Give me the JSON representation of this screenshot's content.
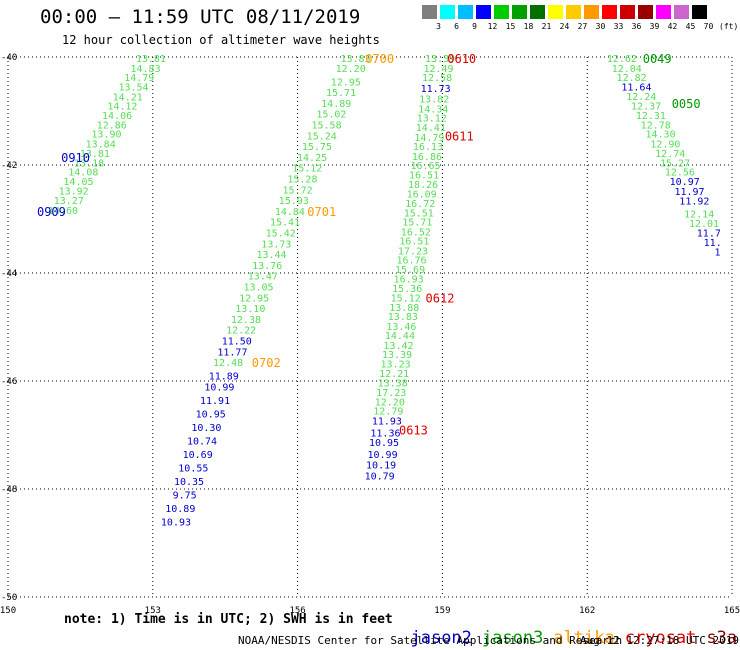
{
  "header": {
    "title": "00:00 – 11:59 UTC 08/11/2019",
    "subtitle": "12 hour collection of altimeter wave heights"
  },
  "colorbar": {
    "labels": [
      "3",
      "6",
      "9",
      "12",
      "15",
      "18",
      "21",
      "24",
      "27",
      "30",
      "33",
      "36",
      "39",
      "42",
      "45",
      "70",
      "(ft)"
    ],
    "colors": [
      "#7f7f7f",
      "#00ffff",
      "#00bfff",
      "#0000ff",
      "#00cc00",
      "#00a000",
      "#007000",
      "#ffff00",
      "#ffcc00",
      "#ff9900",
      "#ff0000",
      "#cc0000",
      "#990000",
      "#ff00ff",
      "#cc66cc",
      "#000000"
    ]
  },
  "footer": {
    "note": "note: 1) Time is in UTC; 2) SWH is in feet",
    "center": "NOAA/NESDIS Center for Satellite Applications and Research",
    "date": "Aug 12 12:27:18 UTC 2019"
  },
  "legend": [
    {
      "name": "jason2",
      "color": "#0000cc"
    },
    {
      "name": "jason3",
      "color": "#009900"
    },
    {
      "name": "altika",
      "color": "#ff9900"
    },
    {
      "name": "cryosat",
      "color": "#dd0000"
    },
    {
      "name": "s3a",
      "color": "#880000"
    }
  ],
  "chart_data": {
    "type": "scatter",
    "title": "00:00 – 11:59 UTC 08/11/2019",
    "xlabel": "",
    "ylabel": "",
    "xlim": [
      150,
      165
    ],
    "ylim": [
      -50,
      -40
    ],
    "x_ticks": [
      150,
      153,
      156,
      159,
      162,
      165
    ],
    "y_ticks": [
      -40,
      -42,
      -44,
      -46,
      -48,
      -50
    ],
    "grid": true,
    "units": "ft",
    "series": [
      {
        "name": "jason3",
        "color": "#55dd55",
        "points": [
          [
            152.96,
            -40.02,
            "13.81"
          ],
          [
            152.85,
            -40.2,
            "14.83"
          ],
          [
            152.72,
            -40.37,
            "14.79"
          ],
          [
            152.6,
            -40.55,
            "13.54"
          ],
          [
            152.48,
            -40.73,
            "14.21"
          ],
          [
            152.37,
            -40.9,
            "14.12"
          ],
          [
            152.26,
            -41.07,
            "14.06"
          ],
          [
            152.15,
            -41.25,
            "12.86"
          ],
          [
            152.04,
            -41.42,
            "13.90"
          ],
          [
            151.92,
            -41.6,
            "13.84"
          ],
          [
            151.8,
            -41.78,
            "13.81"
          ],
          [
            151.68,
            -41.95,
            "13.18"
          ],
          [
            151.56,
            -42.12,
            "14.08"
          ],
          [
            151.46,
            -42.3,
            "14.05"
          ],
          [
            151.36,
            -42.47,
            "13.92"
          ],
          [
            151.26,
            -42.65,
            "13.27"
          ],
          [
            151.14,
            -42.83,
            "14.60"
          ]
        ]
      },
      {
        "name": "jason2",
        "color": "#0000cc",
        "points": []
      },
      {
        "name": "altika",
        "color": "#55dd55",
        "points": [
          [
            157.2,
            -40.02,
            "13.83"
          ],
          [
            157.1,
            -40.2,
            "12.20"
          ],
          [
            157.0,
            -40.45,
            "12.95"
          ],
          [
            156.9,
            -40.65,
            "15.71"
          ],
          [
            156.8,
            -40.85,
            "14.89"
          ],
          [
            156.7,
            -41.05,
            "15.02"
          ],
          [
            156.6,
            -41.25,
            "15.58"
          ],
          [
            156.5,
            -41.45,
            "15.24"
          ],
          [
            156.4,
            -41.65,
            "15.75"
          ],
          [
            156.3,
            -41.85,
            "14.25"
          ],
          [
            156.2,
            -42.05,
            "15.12"
          ],
          [
            156.1,
            -42.25,
            "15.28"
          ],
          [
            156.0,
            -42.45,
            "15.72"
          ],
          [
            155.92,
            -42.65,
            "15.93"
          ],
          [
            155.84,
            -42.85,
            "14.84"
          ],
          [
            155.74,
            -43.05,
            "15.41"
          ],
          [
            155.65,
            -43.25,
            "15.42"
          ],
          [
            155.56,
            -43.45,
            "13.73"
          ],
          [
            155.46,
            -43.65,
            "13.44"
          ],
          [
            155.37,
            -43.85,
            "13.76"
          ],
          [
            155.28,
            -44.05,
            "13.47"
          ],
          [
            155.19,
            -44.25,
            "13.05"
          ],
          [
            155.1,
            -44.45,
            "12.95"
          ],
          [
            155.02,
            -44.65,
            "13.10"
          ],
          [
            154.93,
            -44.85,
            "12.38"
          ],
          [
            154.83,
            -45.05,
            "12.22"
          ]
        ]
      },
      {
        "name": "altika-blue",
        "color": "#0000cc",
        "points": [
          [
            154.74,
            -45.25,
            "11.50"
          ],
          [
            154.65,
            -45.45,
            "11.77"
          ]
        ]
      },
      {
        "name": "altika-tail",
        "color": "#55dd55",
        "points": [
          [
            154.56,
            -45.65,
            "12.48"
          ]
        ]
      },
      {
        "name": "altika-end",
        "color": "#0000cc",
        "points": [
          [
            154.47,
            -45.9,
            "11.89"
          ],
          [
            154.38,
            -46.1,
            "10.99"
          ],
          [
            154.29,
            -46.35,
            "11.91"
          ],
          [
            154.2,
            -46.6,
            "10.95"
          ],
          [
            154.11,
            -46.85,
            "10.30"
          ],
          [
            154.02,
            -47.1,
            "10.74"
          ],
          [
            153.93,
            -47.35,
            "10.69"
          ],
          [
            153.84,
            -47.6,
            "10.55"
          ],
          [
            153.75,
            -47.85,
            "10.35"
          ],
          [
            153.66,
            -48.1,
            "9.75"
          ],
          [
            153.57,
            -48.35,
            "10.89"
          ],
          [
            153.48,
            -48.6,
            "10.93"
          ]
        ]
      },
      {
        "name": "cryosat",
        "color": "#55dd55",
        "points": [
          [
            158.95,
            -40.02,
            "13.39"
          ],
          [
            158.92,
            -40.2,
            "12.49"
          ],
          [
            158.89,
            -40.37,
            "12.58"
          ],
          [
            158.83,
            -40.77,
            "13.82"
          ],
          [
            158.81,
            -40.95,
            "14.34"
          ],
          [
            158.78,
            -41.12,
            "13.12"
          ],
          [
            158.76,
            -41.3,
            "14.41"
          ],
          [
            158.73,
            -41.48,
            "14.79"
          ],
          [
            158.7,
            -41.65,
            "16.13"
          ],
          [
            158.68,
            -41.83,
            "16.86"
          ],
          [
            158.65,
            -42.0,
            "16.65"
          ],
          [
            158.62,
            -42.18,
            "16.51"
          ],
          [
            158.6,
            -42.35,
            "18.26"
          ],
          [
            158.57,
            -42.53,
            "16.09"
          ],
          [
            158.54,
            -42.7,
            "16.72"
          ],
          [
            158.51,
            -42.88,
            "15.51"
          ],
          [
            158.48,
            -43.05,
            "15.71"
          ],
          [
            158.45,
            -43.23,
            "16.52"
          ],
          [
            158.42,
            -43.4,
            "16.51"
          ],
          [
            158.39,
            -43.58,
            "17.23"
          ],
          [
            158.36,
            -43.75,
            "16.76"
          ],
          [
            158.33,
            -43.93,
            "15.69"
          ],
          [
            158.3,
            -44.1,
            "16.93"
          ],
          [
            158.27,
            -44.28,
            "15.36"
          ],
          [
            158.24,
            -44.45,
            "15.12"
          ],
          [
            158.21,
            -44.63,
            "13.88"
          ],
          [
            158.18,
            -44.8,
            "13.83"
          ],
          [
            158.15,
            -44.98,
            "13.46"
          ],
          [
            158.12,
            -45.15,
            "14.44"
          ],
          [
            158.09,
            -45.33,
            "13.42"
          ],
          [
            158.06,
            -45.5,
            "13.39"
          ],
          [
            158.03,
            -45.68,
            "13.23"
          ],
          [
            158.0,
            -45.85,
            "12.21"
          ],
          [
            157.97,
            -46.03,
            "13.38"
          ],
          [
            157.94,
            -46.2,
            "17.23"
          ],
          [
            157.91,
            -46.38,
            "12.20"
          ],
          [
            157.88,
            -46.55,
            "12.79"
          ]
        ]
      },
      {
        "name": "cryosat-blue",
        "color": "#0000cc",
        "points": [
          [
            158.86,
            -40.57,
            "11.73"
          ],
          [
            157.85,
            -46.73,
            "11.93"
          ],
          [
            157.82,
            -46.95,
            "11.36"
          ],
          [
            157.79,
            -47.13,
            "10.95"
          ],
          [
            157.76,
            -47.35,
            "10.99"
          ],
          [
            157.73,
            -47.55,
            "10.19"
          ],
          [
            157.7,
            -47.75,
            "10.79"
          ]
        ]
      },
      {
        "name": "s3a",
        "color": "#55dd55",
        "points": [
          [
            162.72,
            -40.02,
            "12.62"
          ],
          [
            162.82,
            -40.2,
            "12.04"
          ],
          [
            162.92,
            -40.37,
            "12.82"
          ],
          [
            163.12,
            -40.72,
            "12.24"
          ],
          [
            163.22,
            -40.9,
            "12.37"
          ],
          [
            163.32,
            -41.07,
            "12.31"
          ],
          [
            163.42,
            -41.25,
            "12.78"
          ],
          [
            163.52,
            -41.42,
            "14.30"
          ],
          [
            163.62,
            -41.6,
            "12.90"
          ],
          [
            163.72,
            -41.78,
            "12.74"
          ],
          [
            163.82,
            -41.95,
            "15.27"
          ],
          [
            163.92,
            -42.12,
            "12.56"
          ],
          [
            164.32,
            -42.9,
            "12.14"
          ],
          [
            164.42,
            -43.07,
            "12.01"
          ]
        ]
      },
      {
        "name": "s3a-blue",
        "color": "#0000cc",
        "points": [
          [
            163.02,
            -40.55,
            "11.64"
          ],
          [
            164.02,
            -42.3,
            "10.97"
          ],
          [
            164.12,
            -42.48,
            "11.97"
          ],
          [
            164.22,
            -42.66,
            "11.92"
          ],
          [
            164.52,
            -43.25,
            "11.7"
          ],
          [
            164.6,
            -43.43,
            "11."
          ],
          [
            164.7,
            -43.6,
            "1"
          ]
        ]
      }
    ],
    "time_labels": [
      {
        "text": "0910",
        "x": 151.4,
        "y": -41.85,
        "color": "#0000cc"
      },
      {
        "text": "0909",
        "x": 150.9,
        "y": -42.85,
        "color": "#0000cc"
      },
      {
        "text": "0700",
        "x": 157.7,
        "y": -40.02,
        "color": "#ff9900"
      },
      {
        "text": "0701",
        "x": 156.5,
        "y": -42.85,
        "color": "#ff9900"
      },
      {
        "text": "0702",
        "x": 155.35,
        "y": -45.65,
        "color": "#ff9900"
      },
      {
        "text": "0610",
        "x": 159.4,
        "y": -40.02,
        "color": "#dd0000"
      },
      {
        "text": "0611",
        "x": 159.35,
        "y": -41.45,
        "color": "#dd0000"
      },
      {
        "text": "0612",
        "x": 158.95,
        "y": -44.45,
        "color": "#dd0000"
      },
      {
        "text": "0613",
        "x": 158.4,
        "y": -46.9,
        "color": "#dd0000"
      },
      {
        "text": "0049",
        "x": 163.45,
        "y": -40.02,
        "color": "#009900"
      },
      {
        "text": "0050",
        "x": 164.05,
        "y": -40.85,
        "color": "#009900"
      }
    ]
  }
}
